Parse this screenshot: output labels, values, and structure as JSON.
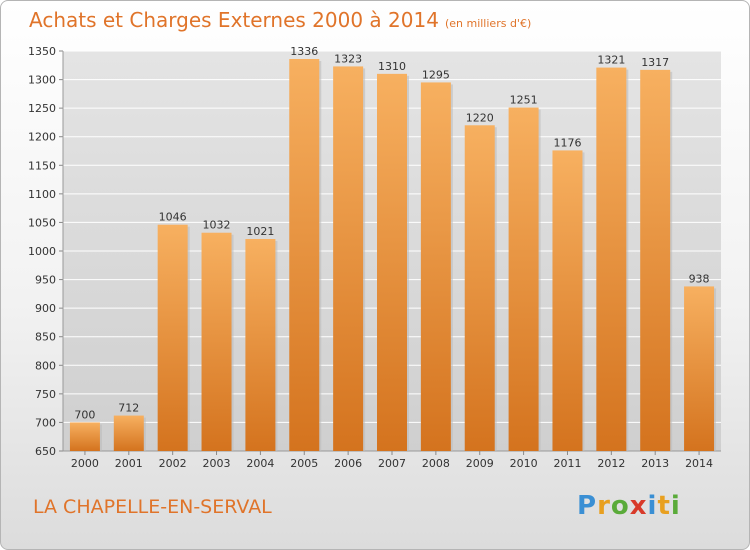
{
  "header": {
    "title": "Achats et Charges Externes 2000 à 2014",
    "subtitle": "(en milliers d'€)"
  },
  "footer": {
    "town": "LA CHAPELLE-EN-SERVAL",
    "brand": {
      "text": "Proxiti",
      "letters": [
        {
          "ch": "P",
          "color": "#3a8fd4"
        },
        {
          "ch": "r",
          "color": "#e8a020"
        },
        {
          "ch": "o",
          "color": "#5aab3a"
        },
        {
          "ch": "x",
          "color": "#d83a2a"
        },
        {
          "ch": "i",
          "color": "#3a8fd4"
        },
        {
          "ch": "t",
          "color": "#e8a020"
        },
        {
          "ch": "i",
          "color": "#5aab3a"
        }
      ]
    }
  },
  "chart_data": {
    "type": "bar",
    "title": "Achats et Charges Externes 2000 à 2014",
    "subtitle": "(en milliers d'€)",
    "categories": [
      "2000",
      "2001",
      "2002",
      "2003",
      "2004",
      "2005",
      "2006",
      "2007",
      "2008",
      "2009",
      "2010",
      "2011",
      "2012",
      "2013",
      "2014"
    ],
    "values": [
      700,
      712,
      1046,
      1032,
      1021,
      1336,
      1323,
      1310,
      1295,
      1220,
      1251,
      1176,
      1321,
      1317,
      938
    ],
    "ylim": [
      650,
      1350
    ],
    "yticks": [
      650,
      700,
      750,
      800,
      850,
      900,
      950,
      1000,
      1050,
      1100,
      1150,
      1200,
      1250,
      1300,
      1350
    ],
    "grid": true,
    "bar_color": "#f0963c",
    "bar_color_light": "#f6ad5c",
    "bar_color_dark": "#d7741f"
  }
}
